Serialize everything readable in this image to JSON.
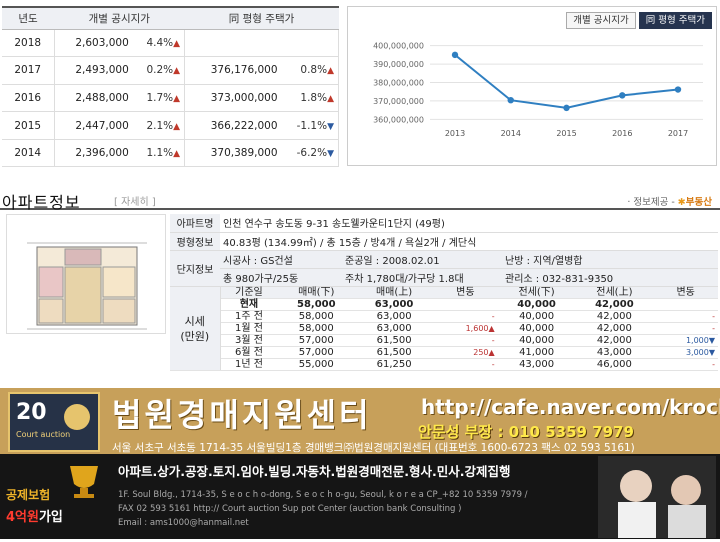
{
  "price_table": {
    "headers": [
      "년도",
      "개별 공시지가",
      "同 평형 주택가"
    ],
    "rows": [
      {
        "year": "2018",
        "land": "2,603,000",
        "land_pct": "4.4%",
        "land_dir": "▲",
        "house": "",
        "house_pct": "",
        "house_dir": ""
      },
      {
        "year": "2017",
        "land": "2,493,000",
        "land_pct": "0.2%",
        "land_dir": "▲",
        "house": "376,176,000",
        "house_pct": "0.8%",
        "house_dir": "▲"
      },
      {
        "year": "2016",
        "land": "2,488,000",
        "land_pct": "1.7%",
        "land_dir": "▲",
        "house": "373,000,000",
        "house_pct": "1.8%",
        "house_dir": "▲"
      },
      {
        "year": "2015",
        "land": "2,447,000",
        "land_pct": "2.1%",
        "land_dir": "▲",
        "house": "366,222,000",
        "house_pct": "-1.1%",
        "house_dir": "▼"
      },
      {
        "year": "2014",
        "land": "2,396,000",
        "land_pct": "1.1%",
        "land_dir": "▲",
        "house": "370,389,000",
        "house_pct": "-6.2%",
        "house_dir": "▼"
      }
    ]
  },
  "chart_tabs": {
    "tab1": "개별 공시지가",
    "tab2": "同 평형 주택가",
    "active": "tab2"
  },
  "chart_data": {
    "type": "line",
    "x": [
      "2013",
      "2014",
      "2015",
      "2016",
      "2017"
    ],
    "series": [
      {
        "values": [
          395000000,
          370389000,
          366222000,
          373000000,
          376176000
        ]
      }
    ],
    "yticks": [
      "400,000,000",
      "390,000,000",
      "380,000,000",
      "370,000,000",
      "360,000,000"
    ],
    "ylim": [
      358000000,
      402000000
    ],
    "line_color": "#2f7fc1",
    "grid": true
  },
  "section": {
    "title": "아파트정보",
    "detail": "[ 자세히 ]",
    "source_prefix": "· 정보제공 -",
    "source_brand": "부동산"
  },
  "info": {
    "r1_label": "아파트명",
    "r1_value": "인천 연수구 송도동 9-31 송도웰카운티1단지 (49평)",
    "r2_label": "평형정보",
    "r2_value": "40.83평 (134.99㎡) / 총 15층 / 방4개 / 욕실2개 / 계단식",
    "r3_label": "단지정보",
    "r3_a_label": "시공사 : GS건설",
    "r3_b_label": "준공일 : 2008.02.01",
    "r3_c_label": "난방 : 지역/열병합",
    "r4_a": "총 980가구/25동",
    "r4_b": "주차 1,780대/가구당 1.8대",
    "r4_c": "관리소 : 032-831-9350"
  },
  "market": {
    "side_label_1": "시세",
    "side_label_2": "(만원)",
    "headers": [
      "기준일",
      "매매(下)",
      "매매(上)",
      "변동",
      "전세(下)",
      "전세(上)",
      "변동"
    ],
    "rows": [
      {
        "d": "현재",
        "s1": "58,000",
        "s2": "63,000",
        "c1": "",
        "j1": "40,000",
        "j2": "42,000",
        "c2": "",
        "bold": true
      },
      {
        "d": "1주 전",
        "s1": "58,000",
        "s2": "63,000",
        "c1": "-",
        "j1": "40,000",
        "j2": "42,000",
        "c2": "-"
      },
      {
        "d": "1월 전",
        "s1": "58,000",
        "s2": "63,000",
        "c1": "1,600▲",
        "j1": "40,000",
        "j2": "42,000",
        "c2": "-"
      },
      {
        "d": "3월 전",
        "s1": "57,000",
        "s2": "61,500",
        "c1": "-",
        "j1": "40,000",
        "j2": "42,000",
        "c2": "1,000▼"
      },
      {
        "d": "6월 전",
        "s1": "57,000",
        "s2": "61,500",
        "c1": "250▲",
        "j1": "41,000",
        "j2": "43,000",
        "c2": "3,000▼"
      },
      {
        "d": "1년 전",
        "s1": "55,000",
        "s2": "61,250",
        "c1": "-",
        "j1": "43,000",
        "j2": "46,000",
        "c2": "-"
      }
    ]
  },
  "banner": {
    "logo_num": "20",
    "logo_text": "Court auction",
    "title": "법원경매지원센터",
    "url": "http://cafe.naver.com/krocha",
    "phone": "안문성 부장 : 010 5359 7979",
    "address": "서울 서초구 서초동 1714-35 서울빌딩1층 경매뱅크㈜법원경매지원센터 (대표번호 1600-6723 팩스 02 593 5161)"
  },
  "footer": {
    "categories": "아파트.상가.공장.토지.임야.빌딩.자동차.법원경매전문.형사.민사.강제집행",
    "line1": "1F. Soul Bldg., 1714-35, S e o c h o-dong, S e o c h o-gu, Seoul, k o r e a CP_+82  10  5359  7979  /",
    "line2": "FAX 02  593  5161  http://  Court auction Sup pot Center (auction  bank Consulting )",
    "line3": "Email : ams1000@hanmail.net",
    "insurance": "공제보험",
    "amount": "4억원",
    "join": "가입"
  }
}
